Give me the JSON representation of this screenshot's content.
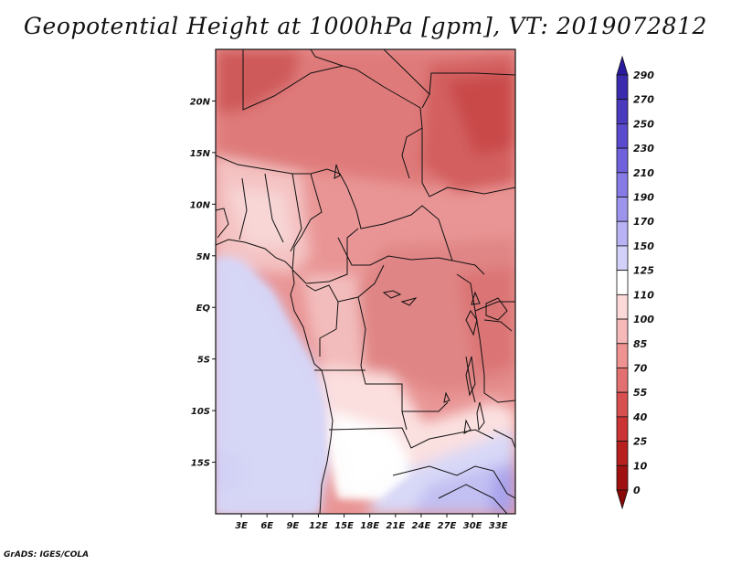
{
  "title": "Geopotential Height at 1000hPa [gpm], VT: 2019072812",
  "credit": "GrADS: IGES/COLA",
  "map": {
    "lon_range": [
      0,
      35
    ],
    "lat_range": [
      -20,
      25
    ],
    "lat_ticks": [
      "20N",
      "15N",
      "10N",
      "5N",
      "EQ",
      "5S",
      "10S",
      "15S"
    ],
    "lon_ticks": [
      "3E",
      "6E",
      "9E",
      "12E",
      "15E",
      "18E",
      "21E",
      "24E",
      "27E",
      "30E",
      "33E"
    ]
  },
  "colorbar": {
    "labels": [
      "290",
      "270",
      "250",
      "230",
      "210",
      "190",
      "170",
      "150",
      "125",
      "110",
      "100",
      "85",
      "70",
      "55",
      "40",
      "25",
      "10",
      "0"
    ],
    "colors": [
      "#2a1a9e",
      "#3a2aae",
      "#4a3abe",
      "#5a4ace",
      "#6f60dc",
      "#857ae6",
      "#9d94ee",
      "#b8b2f4",
      "#d2d0f8",
      "#ffffff",
      "#fbd9d9",
      "#f6b8b8",
      "#ee9292",
      "#e37070",
      "#d84f4f",
      "#cb3434",
      "#b81f1f",
      "#a01010",
      "#8a0707"
    ]
  }
}
